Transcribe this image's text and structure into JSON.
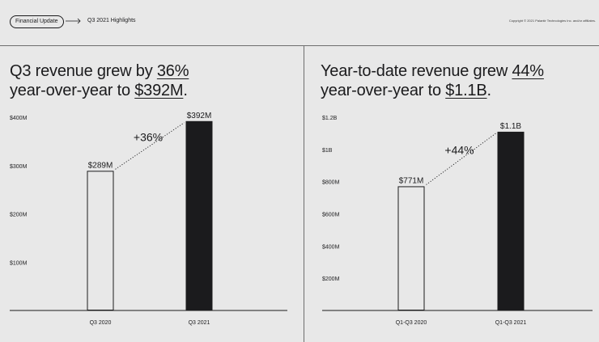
{
  "header": {
    "pill_label": "Financial Update",
    "breadcrumb": "Q3 2021 Highlights",
    "copyright": "Copyright © 2021 Palantir Technologies Inc. and/or affiliates."
  },
  "colors": {
    "background": "#e8e8e8",
    "ink": "#1b1b1d",
    "divider": "#6e6e6e"
  },
  "left_panel": {
    "headline": {
      "pre1": "Q3 revenue grew by ",
      "em1": "36%",
      "pre2": "year-over-year to ",
      "em2": "$392M",
      "post": "."
    }
  },
  "right_panel": {
    "headline": {
      "pre1": "Year-to-date revenue grew ",
      "em1": "44%",
      "pre2": "year-over-year to ",
      "em2": "$1.1B",
      "post": "."
    }
  },
  "chart_data": [
    {
      "type": "bar",
      "title": "Q3 revenue grew by 36% year-over-year to $392M.",
      "categories": [
        "Q3 2020",
        "Q3 2021"
      ],
      "values": [
        289,
        392
      ],
      "value_labels": [
        "$289M",
        "$392M"
      ],
      "bar_styles": [
        "outline",
        "filled"
      ],
      "yticks": [
        100,
        200,
        300,
        400
      ],
      "ytick_labels": [
        "$100M",
        "$200M",
        "$300M",
        "$400M"
      ],
      "ylim": [
        0,
        400
      ],
      "growth_label": "+36%",
      "grid": false,
      "units": "USD millions"
    },
    {
      "type": "bar",
      "title": "Year-to-date revenue grew 44% year-over-year to $1.1B.",
      "categories": [
        "Q1-Q3 2020",
        "Q1-Q3 2021"
      ],
      "values": [
        771,
        1110
      ],
      "value_labels": [
        "$771M",
        "$1.1B"
      ],
      "bar_styles": [
        "outline",
        "filled"
      ],
      "yticks": [
        200,
        400,
        600,
        800,
        1000,
        1200
      ],
      "ytick_labels": [
        "$200M",
        "$400M",
        "$600M",
        "$800M",
        "$1B",
        "$1.2B"
      ],
      "ylim": [
        0,
        1200
      ],
      "growth_label": "+44%",
      "grid": false,
      "units": "USD millions"
    }
  ]
}
